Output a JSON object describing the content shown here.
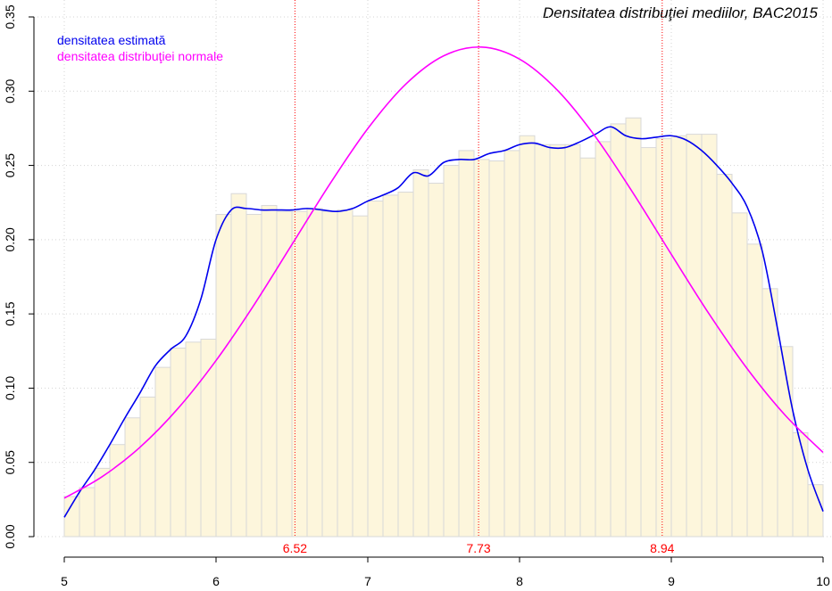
{
  "chart_data": {
    "type": "histogram",
    "title": "Densitatea distribuţiei mediilor, BAC2015",
    "bins": [
      5,
      5.1,
      5.2,
      5.3,
      5.4,
      5.5,
      5.6,
      5.7,
      5.8,
      5.9,
      6,
      6.1,
      6.2,
      6.3,
      6.4,
      6.5,
      6.6,
      6.7,
      6.8,
      6.9,
      7,
      7.1,
      7.2,
      7.3,
      7.4,
      7.5,
      7.6,
      7.7,
      7.8,
      7.9,
      8,
      8.1,
      8.2,
      8.3,
      8.4,
      8.5,
      8.6,
      8.7,
      8.8,
      8.9,
      9,
      9.1,
      9.2,
      9.3,
      9.4,
      9.5,
      9.6,
      9.7,
      9.8,
      9.9,
      10
    ],
    "values": [
      0.027,
      0.033,
      0.046,
      0.062,
      0.08,
      0.094,
      0.114,
      0.127,
      0.131,
      0.133,
      0.217,
      0.231,
      0.217,
      0.223,
      0.219,
      0.219,
      0.221,
      0.219,
      0.22,
      0.216,
      0.226,
      0.23,
      0.232,
      0.247,
      0.238,
      0.25,
      0.26,
      0.254,
      0.253,
      0.26,
      0.27,
      0.264,
      0.264,
      0.264,
      0.255,
      0.266,
      0.278,
      0.282,
      0.262,
      0.268,
      0.27,
      0.271,
      0.271,
      0.244,
      0.218,
      0.197,
      0.167,
      0.128,
      0.07,
      0.035
    ],
    "color": "#fdf6dc",
    "edge_color": "#d8d8d8",
    "series": [
      {
        "name": "densitatea estimată",
        "color": "#0000ee",
        "x": [
          5,
          5.1,
          5.2,
          5.3,
          5.4,
          5.5,
          5.6,
          5.7,
          5.8,
          5.9,
          6,
          6.1,
          6.2,
          6.3,
          6.4,
          6.5,
          6.6,
          6.7,
          6.8,
          6.9,
          7,
          7.1,
          7.2,
          7.3,
          7.4,
          7.5,
          7.6,
          7.7,
          7.8,
          7.9,
          8,
          8.1,
          8.2,
          8.3,
          8.4,
          8.5,
          8.6,
          8.7,
          8.8,
          8.9,
          9,
          9.1,
          9.2,
          9.3,
          9.4,
          9.5,
          9.6,
          9.7,
          9.8,
          9.9,
          10
        ],
        "values": [
          0.013,
          0.03,
          0.045,
          0.062,
          0.08,
          0.097,
          0.115,
          0.126,
          0.135,
          0.16,
          0.2,
          0.22,
          0.221,
          0.22,
          0.22,
          0.22,
          0.221,
          0.22,
          0.219,
          0.221,
          0.226,
          0.23,
          0.235,
          0.245,
          0.243,
          0.252,
          0.254,
          0.254,
          0.258,
          0.26,
          0.264,
          0.265,
          0.262,
          0.262,
          0.266,
          0.271,
          0.276,
          0.27,
          0.268,
          0.269,
          0.27,
          0.267,
          0.26,
          0.25,
          0.238,
          0.222,
          0.192,
          0.14,
          0.085,
          0.045,
          0.017
        ]
      },
      {
        "name": "densitatea distribuţiei normale",
        "color": "#ff00ff",
        "x": [
          5,
          5.25,
          5.5,
          5.75,
          6,
          6.25,
          6.5,
          6.75,
          7,
          7.25,
          7.5,
          7.75,
          8,
          8.25,
          8.5,
          8.75,
          9,
          9.25,
          9.5,
          9.75,
          10
        ],
        "values": [
          0.0259,
          0.0404,
          0.0603,
          0.0864,
          0.1186,
          0.156,
          0.1967,
          0.2375,
          0.2748,
          0.3047,
          0.3238,
          0.3297,
          0.3216,
          0.3006,
          0.2693,
          0.2311,
          0.1901,
          0.1498,
          0.1131,
          0.0818,
          0.0567
        ]
      }
    ],
    "vlines": [
      6.52,
      7.73,
      8.94
    ],
    "vline_color": "#ff0000",
    "xlim": [
      5,
      10
    ],
    "ylim": [
      0,
      0.35
    ],
    "xticks": [
      5,
      6,
      7,
      8,
      9,
      10
    ],
    "yticks": [
      {
        "value": 0,
        "label": "0.00"
      },
      {
        "value": 0.05,
        "label": "0.05"
      },
      {
        "value": 0.1,
        "label": "0.10"
      },
      {
        "value": 0.15,
        "label": "0.15"
      },
      {
        "value": 0.2,
        "label": "0.20"
      },
      {
        "value": 0.25,
        "label": "0.25"
      },
      {
        "value": 0.3,
        "label": "0.30"
      },
      {
        "value": 0.35,
        "label": "0.35"
      }
    ],
    "grid": true
  }
}
